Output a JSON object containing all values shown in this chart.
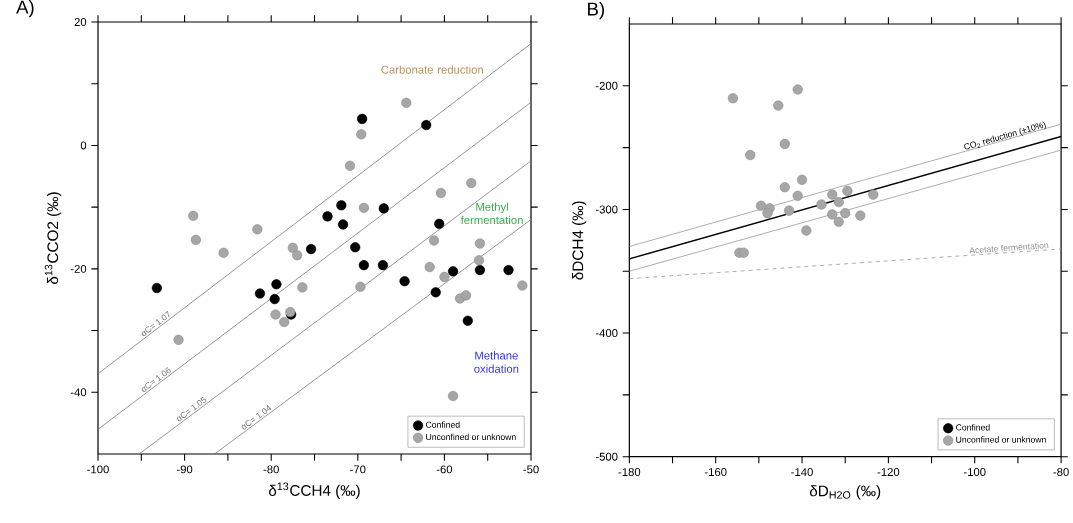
{
  "chart_data": [
    {
      "type": "scatter",
      "title": "A)",
      "xlabel": "δ$^{13}$CCH4 (‰)",
      "ylabel": "δ$^{13}$CCO2 (‰)",
      "xlim": [
        -100,
        -50
      ],
      "ylim": [
        -50,
        20
      ],
      "xticks": [
        -100,
        {
          "value": -95,
          "label": null
        },
        -90,
        {
          "value": -85,
          "label": null
        },
        -80,
        {
          "value": -75,
          "label": null
        },
        -70,
        {
          "value": -65,
          "label": null
        },
        -60,
        {
          "value": -55,
          "label": null
        },
        -50
      ],
      "yticks": [
        -40,
        {
          "value": -30,
          "label": null
        },
        -20,
        {
          "value": -10,
          "label": null
        },
        0,
        {
          "value": 10,
          "label": null
        },
        20
      ],
      "legend": "bottom right",
      "marker": "circle",
      "series": [
        {
          "name": "αC= 1.07",
          "type": "line",
          "marker": "none",
          "line_style": "solid",
          "color": "#707070",
          "x": [
            -100,
            -50
          ],
          "values": [
            -37,
            16.5
          ]
        },
        {
          "name": "αC= 1.06",
          "type": "line",
          "marker": "none",
          "line_style": "solid",
          "color": "#707070",
          "x": [
            -100,
            -50
          ],
          "values": [
            -46,
            7
          ]
        },
        {
          "name": "αC= 1.05",
          "type": "line",
          "marker": "none",
          "line_style": "solid",
          "color": "#707070",
          "x": [
            -95.24,
            -50
          ],
          "values": [
            -50,
            -2.5
          ]
        },
        {
          "name": "αC= 1.04",
          "type": "line",
          "marker": "none",
          "line_style": "solid",
          "color": "#707070",
          "x": [
            -86.54,
            -50
          ],
          "values": [
            -50,
            -12
          ]
        },
        {
          "name": "Confined",
          "color": "#000000",
          "x": [
            -69.5,
            -62.1,
            -71.9,
            -73.5,
            -67.0,
            -71.7,
            -60.6,
            -75.4,
            -70.3,
            -93.2,
            -79.4,
            -81.3,
            -79.6,
            -77.7,
            -69.3,
            -67.1,
            -64.6,
            -59.0,
            -55.9,
            -52.6,
            -61.0,
            -57.3
          ],
          "values": [
            4.3,
            3.3,
            -9.7,
            -11.5,
            -10.2,
            -12.8,
            -12.7,
            -16.8,
            -16.5,
            -23.1,
            -22.5,
            -24.0,
            -24.9,
            -27.4,
            -19.4,
            -19.4,
            -22.0,
            -20.4,
            -20.2,
            -20.2,
            -23.8,
            -28.4
          ]
        },
        {
          "name": "Unconfined or unknown",
          "color": "#a6a6a6",
          "x": [
            -64.4,
            -69.6,
            -70.9,
            -56.9,
            -60.4,
            -69.3,
            -89.0,
            -88.7,
            -81.6,
            -85.5,
            -61.2,
            -55.9,
            -77.5,
            -77.0,
            -56.0,
            -61.7,
            -60.0,
            -51.0,
            -58.2,
            -57.5,
            -69.7,
            -76.4,
            -79.5,
            -78.5,
            -77.8,
            -90.7,
            -59.0
          ],
          "values": [
            6.9,
            1.8,
            -3.3,
            -6.1,
            -7.7,
            -10.1,
            -11.4,
            -15.3,
            -13.6,
            -17.4,
            -15.4,
            -15.9,
            -16.6,
            -17.8,
            -18.6,
            -19.7,
            -21.3,
            -22.7,
            -24.8,
            -24.3,
            -22.9,
            -23.0,
            -27.4,
            -28.6,
            -27.0,
            -31.5,
            -40.6
          ]
        }
      ],
      "annotations": [
        "Carbonate reduction",
        "Methyl fermentation",
        "Methane oxidation"
      ]
    },
    {
      "type": "scatter",
      "title": "B)",
      "xlabel": "δD$_{H2O}$ (‰)",
      "ylabel": "δDCH4 (‰)",
      "xlim": [
        -180,
        -80
      ],
      "ylim": [
        -500,
        -150
      ],
      "xticks": [
        -180,
        {
          "value": -170,
          "label": null
        },
        -160,
        {
          "value": -150,
          "label": null
        },
        -140,
        {
          "value": -130,
          "label": null
        },
        -120,
        {
          "value": -110,
          "label": null
        },
        -100,
        {
          "value": -90,
          "label": null
        },
        -80
      ],
      "yticks": [
        -500,
        {
          "value": -450,
          "label": null
        },
        -400,
        {
          "value": -350,
          "label": null
        },
        -300,
        {
          "value": -250,
          "label": null
        },
        -200
      ],
      "legend": "bottom right",
      "marker": "circle",
      "series": [
        {
          "type": "line",
          "marker": "none",
          "line_style": "solid",
          "color": "#909090",
          "x": [
            -180,
            -80
          ],
          "values": [
            -330,
            -231
          ]
        },
        {
          "type": "line",
          "marker": "none",
          "line_style": "solid",
          "color": "#909090",
          "x": [
            -180,
            -80
          ],
          "values": [
            -350,
            -252
          ]
        },
        {
          "name": "CO$_{2}$ reduction (±10%)",
          "type": "line",
          "marker": "none",
          "line_style": "solid",
          "color": "#000000",
          "x": [
            -180,
            -80
          ],
          "values": [
            -340,
            -241
          ]
        },
        {
          "name": "Acetate fermentation",
          "type": "line",
          "marker": "none",
          "line_style": "dashed",
          "color": "#909090",
          "x": [
            -180,
            -80
          ],
          "values": [
            -356,
            -332
          ]
        },
        {
          "name": "Confined",
          "color": "#000000"
        },
        {
          "name": "Unconfined or unknown",
          "color": "#a6a6a6",
          "x": [
            -156,
            -141,
            -145.5,
            -144,
            -152,
            -140,
            -144,
            -141,
            -149.5,
            -147.5,
            -148,
            -143,
            -139,
            -135.5,
            -133,
            -131.5,
            -129.5,
            -133,
            -130,
            -131.5,
            -126.5,
            -123.5,
            -154.5,
            -153.5
          ],
          "values": [
            -210,
            -203,
            -216,
            -247,
            -256,
            -276,
            -282,
            -289,
            -297,
            -299,
            -303,
            -301,
            -317,
            -296,
            -288,
            -294,
            -285,
            -304,
            -303,
            -310,
            -305,
            -288,
            -335,
            -335
          ]
        }
      ]
    }
  ]
}
